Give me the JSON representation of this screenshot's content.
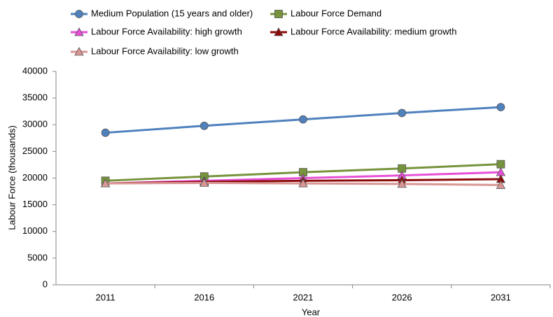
{
  "chart_data": {
    "type": "line",
    "x_label": "Year",
    "y_label": "Labour Force (thousands)",
    "categories": [
      "2011",
      "2016",
      "2021",
      "2026",
      "2031"
    ],
    "series": [
      {
        "name": "Medium Population (15 years and older)",
        "color": "#4f81bd",
        "marker": "circle",
        "values": [
          28500,
          29800,
          31000,
          32200,
          33300
        ]
      },
      {
        "name": "Labour Force Demand",
        "color": "#77933c",
        "marker": "square",
        "values": [
          19500,
          20300,
          21100,
          21800,
          22600
        ]
      },
      {
        "name": "Labour Force Availability: high growth",
        "color": "#e64fd6",
        "marker": "triangle",
        "values": [
          19000,
          19500,
          20000,
          20500,
          21100
        ]
      },
      {
        "name": "Labour Force Availability: medium growth",
        "color": "#8b0a0a",
        "marker": "triangle",
        "values": [
          19000,
          19300,
          19500,
          19600,
          19800
        ]
      },
      {
        "name": "Labour Force Availability: low growth",
        "color": "#d99694",
        "marker": "triangle",
        "values": [
          19000,
          19100,
          19000,
          18900,
          18700
        ]
      }
    ],
    "ylim": [
      0,
      40000
    ],
    "yticks": [
      0,
      5000,
      10000,
      15000,
      20000,
      25000,
      30000,
      35000,
      40000
    ],
    "grid": false
  }
}
